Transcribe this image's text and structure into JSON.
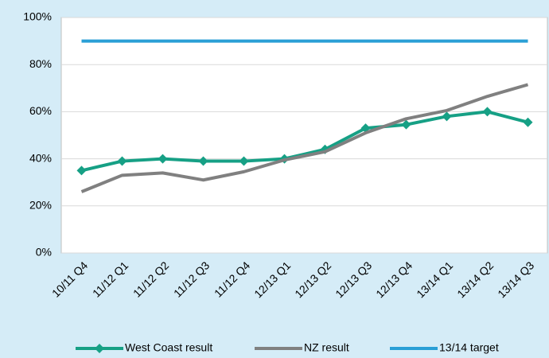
{
  "chart_data": {
    "type": "line",
    "categories": [
      "10/11 Q4",
      "11/12 Q1",
      "11/12 Q2",
      "11/12 Q3",
      "11/12 Q4",
      "12/13 Q1",
      "12/13 Q2",
      "12/13 Q3",
      "12/13 Q4",
      "13/14 Q1",
      "13/14 Q2",
      "13/14 Q3"
    ],
    "series": [
      {
        "name": "West Coast result",
        "color": "#16a085",
        "marker": "diamond",
        "values": [
          35,
          39,
          40,
          39,
          39,
          40,
          44,
          53,
          54.5,
          58,
          60,
          55.5
        ]
      },
      {
        "name": "NZ result",
        "color": "#808080",
        "values": [
          26,
          33,
          34,
          31,
          34.5,
          39.5,
          43,
          51,
          57,
          60.5,
          66.5,
          71.5
        ]
      },
      {
        "name": "13/14 target",
        "color": "#2a9fd6",
        "values": [
          90,
          90,
          90,
          90,
          90,
          90,
          90,
          90,
          90,
          90,
          90,
          90
        ]
      }
    ],
    "ylim": [
      0,
      100
    ],
    "yticks": [
      {
        "value": 0,
        "label": "0%"
      },
      {
        "value": 20,
        "label": "20%"
      },
      {
        "value": 40,
        "label": "40%"
      },
      {
        "value": 60,
        "label": "60%"
      },
      {
        "value": 80,
        "label": "80%"
      },
      {
        "value": 100,
        "label": "100%"
      }
    ],
    "grid": true,
    "legend": "bottom"
  }
}
